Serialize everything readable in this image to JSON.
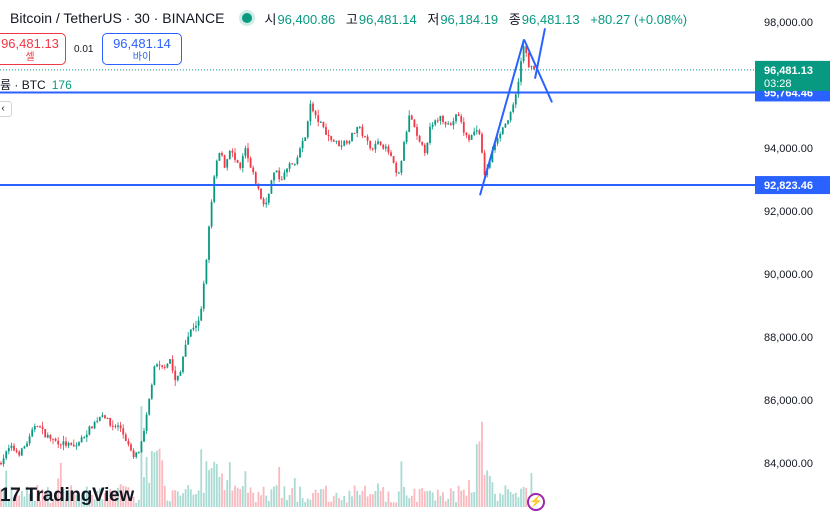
{
  "header": {
    "title": "Bitcoin / TetherUS · 30 · BINANCE",
    "open_label": "시",
    "open": "96,400.86",
    "high_label": "고",
    "high": "96,481.14",
    "low_label": "저",
    "low": "96,184.19",
    "close_label": "종",
    "close": "96,481.13",
    "change": "+80.27 (+0.08%)"
  },
  "trade": {
    "sell_price": "96,481.13",
    "sell_label": "셀",
    "spread": "0.01",
    "buy_price": "96,481.14",
    "buy_label": "바이"
  },
  "volume": {
    "label": "륨 · BTC",
    "value": "176"
  },
  "collapse_icon": "chevron-left-icon",
  "branding": "TradingView",
  "colors": {
    "up": "#089981",
    "down": "#f23645",
    "accent": "#2962ff",
    "axis_text": "#131722",
    "last_price_label": "#089981"
  },
  "chart_data": {
    "type": "candlestick",
    "timeframe": "30",
    "ylim": [
      82600,
      98700
    ],
    "yticks": [
      84000,
      86000,
      88000,
      90000,
      92000,
      94000,
      96000,
      98000
    ],
    "ytick_labels": [
      "84,000.00",
      "86,000.00",
      "88,000.00",
      "90,000.00",
      "92,000.00",
      "94,000.00",
      "96,000.00",
      "98,000.00"
    ],
    "last_price": {
      "value": 96481.13,
      "label": "96,481.13",
      "countdown": "03:28"
    },
    "horizontal_lines": [
      {
        "value": 95764.46,
        "label": "95,764.46"
      },
      {
        "value": 92823.46,
        "label": "92,823.46"
      }
    ],
    "trendlines": [
      {
        "from": [
          480,
          92500
        ],
        "to": [
          524,
          97450
        ]
      },
      {
        "from": [
          524,
          97450
        ],
        "to": [
          552,
          95450
        ]
      },
      {
        "from": [
          535,
          96200
        ],
        "to": [
          545,
          97800
        ]
      }
    ],
    "price_path": [
      [
        0,
        84000
      ],
      [
        10,
        84500
      ],
      [
        20,
        84300
      ],
      [
        30,
        84800
      ],
      [
        36,
        85300
      ],
      [
        45,
        84900
      ],
      [
        55,
        84700
      ],
      [
        65,
        84600
      ],
      [
        75,
        84500
      ],
      [
        85,
        84900
      ],
      [
        95,
        85300
      ],
      [
        103,
        85600
      ],
      [
        110,
        85200
      ],
      [
        120,
        85150
      ],
      [
        128,
        84600
      ],
      [
        133,
        84150
      ],
      [
        140,
        84400
      ],
      [
        145,
        85100
      ],
      [
        150,
        86200
      ],
      [
        155,
        87100
      ],
      [
        162,
        87000
      ],
      [
        170,
        87300
      ],
      [
        175,
        86600
      ],
      [
        180,
        86800
      ],
      [
        185,
        87800
      ],
      [
        192,
        88300
      ],
      [
        200,
        88500
      ],
      [
        205,
        90000
      ],
      [
        210,
        91800
      ],
      [
        215,
        93300
      ],
      [
        220,
        93900
      ],
      [
        225,
        93400
      ],
      [
        230,
        94000
      ],
      [
        235,
        93600
      ],
      [
        240,
        93300
      ],
      [
        245,
        94000
      ],
      [
        250,
        93400
      ],
      [
        255,
        93000
      ],
      [
        260,
        92500
      ],
      [
        265,
        92100
      ],
      [
        270,
        92800
      ],
      [
        275,
        93300
      ],
      [
        280,
        93000
      ],
      [
        285,
        93200
      ],
      [
        290,
        93500
      ],
      [
        295,
        93400
      ],
      [
        300,
        94000
      ],
      [
        305,
        94300
      ],
      [
        310,
        95400
      ],
      [
        315,
        95000
      ],
      [
        320,
        94800
      ],
      [
        330,
        94300
      ],
      [
        340,
        94100
      ],
      [
        350,
        94300
      ],
      [
        358,
        94700
      ],
      [
        365,
        94300
      ],
      [
        372,
        94000
      ],
      [
        380,
        94200
      ],
      [
        390,
        93800
      ],
      [
        398,
        93000
      ],
      [
        405,
        94300
      ],
      [
        410,
        95100
      ],
      [
        418,
        94200
      ],
      [
        425,
        93900
      ],
      [
        430,
        94600
      ],
      [
        440,
        95000
      ],
      [
        450,
        94700
      ],
      [
        458,
        95100
      ],
      [
        465,
        94400
      ],
      [
        470,
        94300
      ],
      [
        478,
        94700
      ],
      [
        485,
        93100
      ],
      [
        490,
        93600
      ],
      [
        496,
        94300
      ],
      [
        502,
        94600
      ],
      [
        510,
        95000
      ],
      [
        515,
        95500
      ],
      [
        520,
        96500
      ],
      [
        524,
        97300
      ],
      [
        528,
        96700
      ],
      [
        532,
        96500
      ],
      [
        536,
        96481
      ]
    ]
  }
}
